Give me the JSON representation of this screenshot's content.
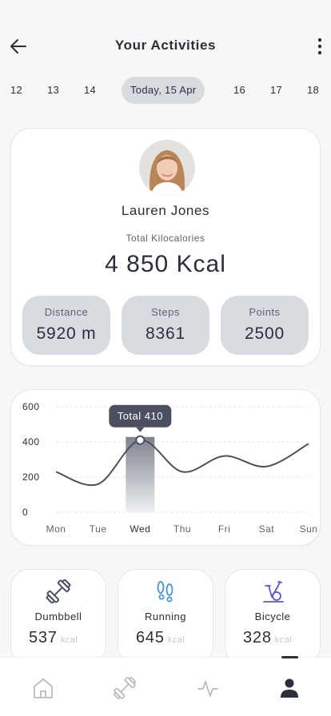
{
  "header": {
    "title": "Your Activities"
  },
  "dates": [
    {
      "label": "12",
      "active": false
    },
    {
      "label": "13",
      "active": false
    },
    {
      "label": "14",
      "active": false
    },
    {
      "label": "Today, 15 Apr",
      "active": true
    },
    {
      "label": "16",
      "active": false
    },
    {
      "label": "17",
      "active": false
    },
    {
      "label": "18",
      "active": false
    }
  ],
  "profile": {
    "name": "Lauren Jones",
    "kcal_label": "Total Kilocalories",
    "kcal_value": "4 850 Kcal",
    "stats": [
      {
        "label": "Distance",
        "value": "5920 m"
      },
      {
        "label": "Steps",
        "value": "8361"
      },
      {
        "label": "Points",
        "value": "2500"
      }
    ]
  },
  "chart_data": {
    "type": "line",
    "categories": [
      "Mon",
      "Tue",
      "Wed",
      "Thu",
      "Fri",
      "Sat",
      "Sun"
    ],
    "values": [
      230,
      160,
      410,
      230,
      320,
      260,
      390
    ],
    "yticks": [
      0,
      200,
      400,
      600
    ],
    "ylim": [
      0,
      600
    ],
    "grid": true,
    "highlight": {
      "category": "Wed",
      "label": "Total 410"
    }
  },
  "activities": [
    {
      "name": "Dumbbell",
      "value": "537",
      "unit": "kcal",
      "icon": "dumbbell-icon",
      "color": "#4a5060"
    },
    {
      "name": "Running",
      "value": "645",
      "unit": "kcal",
      "icon": "footprints-icon",
      "color": "#4a90d9"
    },
    {
      "name": "Bicycle",
      "value": "328",
      "unit": "kcal",
      "icon": "exercise-bike-icon",
      "color": "#5a58c8"
    }
  ],
  "tabs": [
    {
      "icon": "home-icon",
      "active": false
    },
    {
      "icon": "dumbbell-icon",
      "active": false
    },
    {
      "icon": "activity-icon",
      "active": false
    },
    {
      "icon": "user-icon",
      "active": true
    }
  ],
  "colors": {
    "accent": "#2b2f38",
    "pill": "#d8dbe0",
    "line": "#4a5060"
  }
}
